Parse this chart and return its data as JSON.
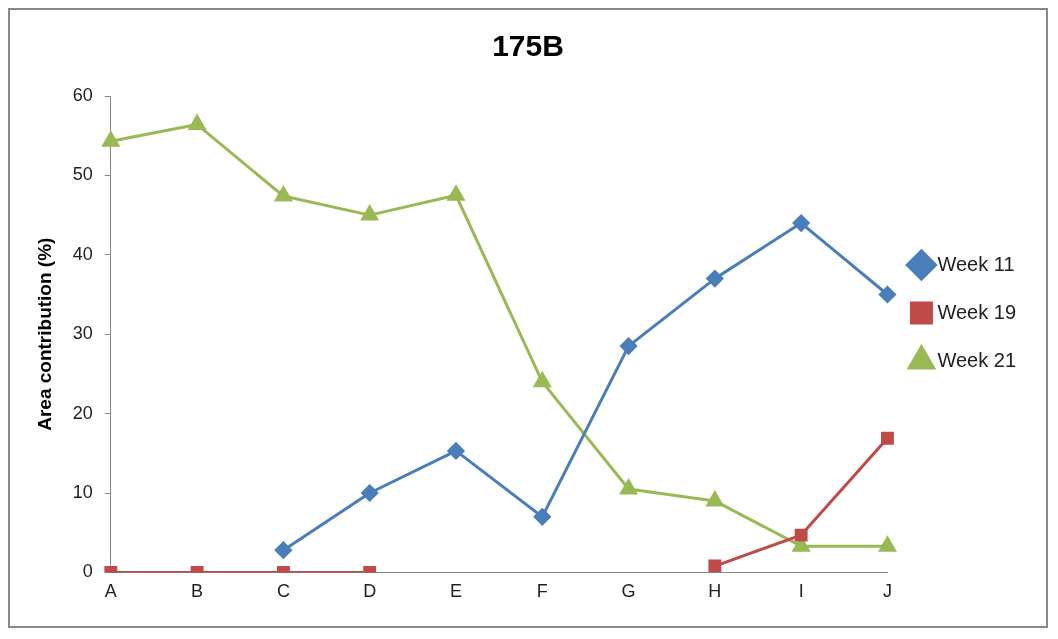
{
  "chart_data": {
    "type": "line",
    "title": "175B",
    "ylabel": "Area contribution (%)",
    "categories": [
      "A",
      "B",
      "C",
      "D",
      "E",
      "F",
      "G",
      "H",
      "I",
      "J"
    ],
    "series": [
      {
        "name": "Week 11",
        "color": "#4a7ebb",
        "marker": "diamond",
        "values": [
          null,
          null,
          2.8,
          10,
          15.3,
          7,
          28.5,
          37,
          44,
          35
        ]
      },
      {
        "name": "Week 19",
        "color": "#be4b48",
        "marker": "square",
        "values": [
          0,
          0,
          0,
          0,
          null,
          null,
          null,
          0.8,
          4.7,
          16.9
        ]
      },
      {
        "name": "Week 21",
        "color": "#98b954",
        "marker": "triangle",
        "values": [
          54.3,
          56.4,
          47.4,
          45,
          47.5,
          24,
          10.5,
          9,
          3.3,
          3.3
        ]
      }
    ],
    "ylim": [
      0,
      60
    ],
    "yticks": [
      0,
      10,
      20,
      30,
      40,
      50,
      60
    ],
    "grid": false,
    "legend": "right"
  }
}
